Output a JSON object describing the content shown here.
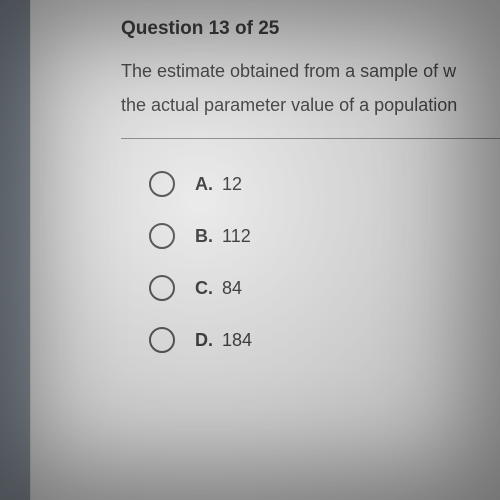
{
  "question": {
    "header": "Question 13 of 25",
    "line1": "The estimate obtained from a sample of w",
    "line2": "the actual parameter value of a population"
  },
  "options": [
    {
      "letter": "A.",
      "value": "12"
    },
    {
      "letter": "B.",
      "value": "112"
    },
    {
      "letter": "C.",
      "value": "84"
    },
    {
      "letter": "D.",
      "value": "184"
    }
  ],
  "styling": {
    "background_color": "#e8e8e8",
    "text_color": "#2a2a2a",
    "radio_border_color": "#444444",
    "divider_color": "#888888",
    "header_fontsize": 19,
    "body_fontsize": 18,
    "option_fontsize": 18,
    "radio_size": 26
  }
}
